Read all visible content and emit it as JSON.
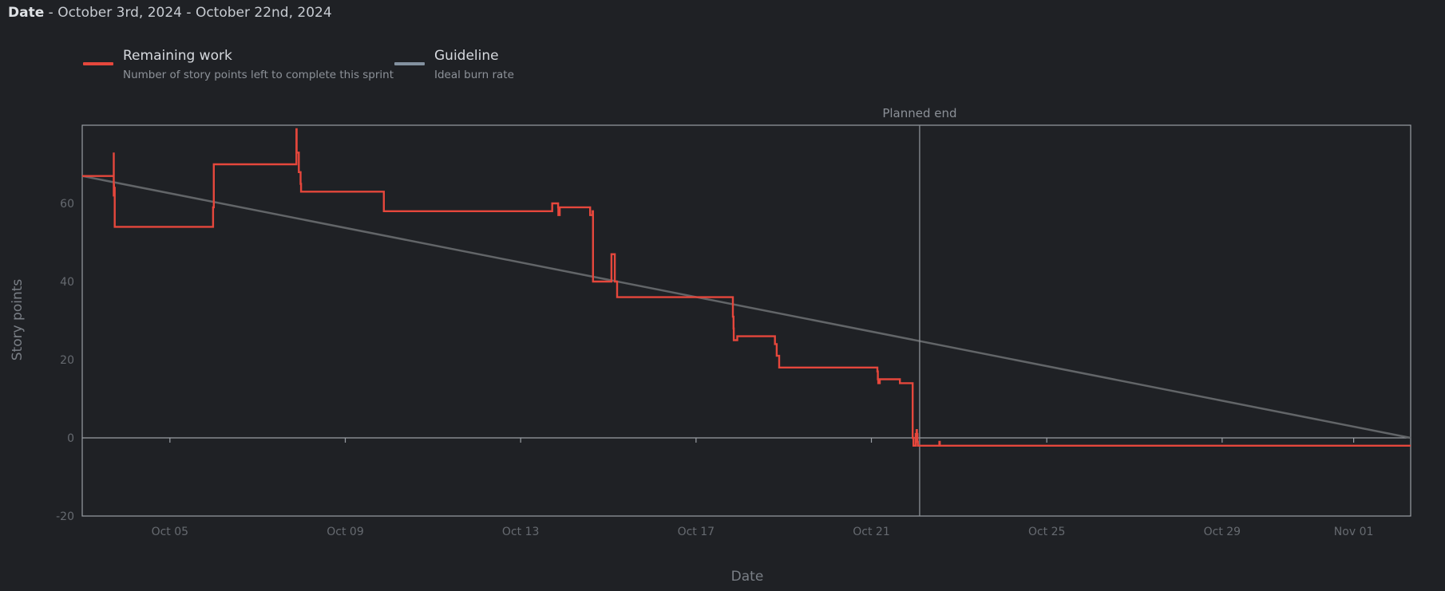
{
  "header": {
    "label": "Date",
    "range": " - October 3rd, 2024 - October 22nd, 2024"
  },
  "legend": [
    {
      "title": "Remaining work",
      "desc": "Number of story points left to complete this sprint",
      "color": "#e5473c"
    },
    {
      "title": "Guideline",
      "desc": "Ideal burn rate",
      "color": "#8391a0"
    }
  ],
  "chart_data": {
    "type": "line",
    "xlabel": "Date",
    "ylabel": "Story points",
    "xlim": [
      "2024-10-03",
      "2024-11-02T07:12"
    ],
    "ylim": [
      -20,
      80
    ],
    "yticks": [
      -20,
      0,
      20,
      40,
      60
    ],
    "xticks": [
      {
        "date": "2024-10-05",
        "label": "Oct 05"
      },
      {
        "date": "2024-10-09",
        "label": "Oct 09"
      },
      {
        "date": "2024-10-13",
        "label": "Oct 13"
      },
      {
        "date": "2024-10-17",
        "label": "Oct 17"
      },
      {
        "date": "2024-10-21",
        "label": "Oct 21"
      },
      {
        "date": "2024-10-25",
        "label": "Oct 25"
      },
      {
        "date": "2024-10-29",
        "label": "Oct 29"
      },
      {
        "date": "2024-11-01",
        "label": "Nov 01"
      }
    ],
    "annotations": [
      {
        "label": "Planned end",
        "date": "2024-10-22T02:24"
      }
    ],
    "series": [
      {
        "name": "Remaining work",
        "color": "#e5473c",
        "step": true,
        "x": [
          "2024-10-03T00:00",
          "2024-10-03T17:17",
          "2024-10-03T17:17",
          "2024-10-03T17:17",
          "2024-10-03T17:24",
          "2024-10-03T17:24",
          "2024-10-03T17:38",
          "2024-10-03T17:46",
          "2024-10-03T17:46",
          "2024-10-03T20:24",
          "2024-10-04T21:36",
          "2024-10-05T23:31",
          "2024-10-05T23:38",
          "2024-10-05T23:46",
          "2024-10-05T23:53",
          "2024-10-06T00:00",
          "2024-10-07T21:07",
          "2024-10-07T21:14",
          "2024-10-07T21:22",
          "2024-10-07T21:22",
          "2024-10-07T22:34",
          "2024-10-07T23:31",
          "2024-10-07T23:46",
          "2024-10-09T21:07",
          "2024-10-12T20:24",
          "2024-10-13T17:17",
          "2024-10-13T17:17",
          "2024-10-13T19:26",
          "2024-10-13T20:31",
          "2024-10-13T20:38",
          "2024-10-13T20:53",
          "2024-10-13T21:22",
          "2024-10-14T13:55",
          "2024-10-14T14:02",
          "2024-10-14T14:24",
          "2024-10-14T15:07",
          "2024-10-14T15:14",
          "2024-10-14T15:22",
          "2024-10-14T15:36",
          "2024-10-15T01:41",
          "2024-10-15T02:53",
          "2024-10-15T03:31",
          "2024-10-15T04:48",
          "2024-10-17T20:10",
          "2024-10-17T20:17",
          "2024-10-17T20:31",
          "2024-10-17T20:38",
          "2024-10-17T20:46",
          "2024-10-17T22:34",
          "2024-10-18T18:55",
          "2024-10-18T19:12",
          "2024-10-18T20:10",
          "2024-10-18T21:31",
          "2024-10-21T00:55",
          "2024-10-21T03:17",
          "2024-10-21T03:31",
          "2024-10-21T03:46",
          "2024-10-21T04:34",
          "2024-10-21T04:48",
          "2024-10-21T09:22",
          "2024-10-21T15:36",
          "2024-10-21T21:22",
          "2024-10-21T22:05",
          "2024-10-21T22:34",
          "2024-10-21T23:02",
          "2024-10-21T23:31",
          "2024-10-22T00:14",
          "2024-10-22T00:29",
          "2024-10-22T00:43",
          "2024-10-22T00:58",
          "2024-10-22T01:12",
          "2024-10-22T01:26",
          "2024-10-22T01:41",
          "2024-10-22T01:55",
          "2024-10-22T02:24",
          "2024-10-22T02:24",
          "2024-10-22T13:12",
          "2024-10-22T13:26",
          "2024-10-22T13:41",
          "2024-11-02T07:12"
        ],
        "values": [
          67,
          67,
          73,
          62,
          65,
          64,
          64,
          64,
          54,
          54,
          54,
          54,
          59,
          59,
          59,
          70,
          70,
          79,
          73,
          73,
          68,
          65,
          63,
          58,
          58,
          58,
          60,
          60,
          59,
          57,
          57,
          59,
          59,
          57,
          57,
          57,
          57,
          58,
          40,
          47,
          47,
          40,
          36,
          31,
          31,
          28,
          25,
          25,
          26,
          26,
          24,
          21,
          18,
          18,
          17,
          15,
          14,
          15,
          15,
          15,
          14,
          14,
          14,
          0,
          -2,
          -2,
          1,
          1,
          2,
          1,
          -1,
          -2,
          -2,
          -2,
          -2,
          -2,
          -1,
          -2,
          -2,
          -2
        ]
      },
      {
        "name": "Guideline",
        "color": "#626568",
        "x": [
          "2024-10-03T00:00",
          "2024-11-02T07:12"
        ],
        "values": [
          67,
          0
        ]
      }
    ]
  }
}
